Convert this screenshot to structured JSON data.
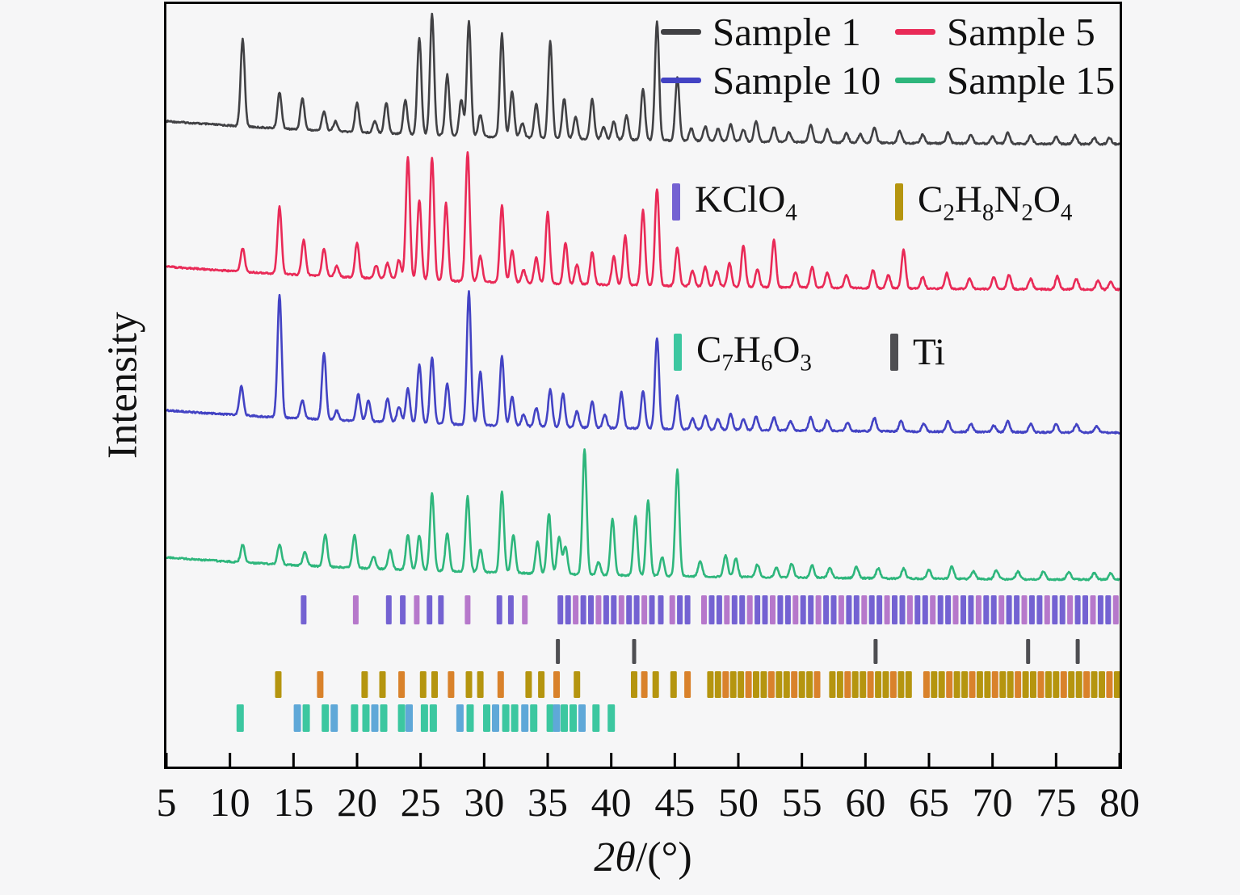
{
  "chart_data": {
    "type": "line",
    "title": "",
    "xlabel": "2θ/(°)",
    "xlabel_parts": [
      {
        "t": "2θ",
        "italic": true
      },
      {
        "t": "/(°)",
        "italic": false
      }
    ],
    "ylabel": "Intensity",
    "x_axis": {
      "min": 5,
      "max": 80,
      "tick_step": 5,
      "ticks": [
        5,
        10,
        15,
        20,
        25,
        30,
        35,
        40,
        45,
        50,
        55,
        60,
        65,
        70,
        75,
        80
      ]
    },
    "y_axis": {
      "ticks": [],
      "note": "arbitrary intensity units, no ticks shown"
    },
    "legend_position": "top-right",
    "grid": false,
    "series": [
      {
        "name": "Sample 1",
        "color": "#414144",
        "peaks": [
          [
            11.0,
            0.72
          ],
          [
            13.9,
            0.3
          ],
          [
            15.7,
            0.26
          ],
          [
            17.4,
            0.16
          ],
          [
            18.3,
            0.08
          ],
          [
            20.0,
            0.24
          ],
          [
            21.4,
            0.1
          ],
          [
            22.3,
            0.25
          ],
          [
            23.8,
            0.28
          ],
          [
            24.9,
            0.8
          ],
          [
            25.9,
            1.0
          ],
          [
            27.1,
            0.5
          ],
          [
            28.2,
            0.3
          ],
          [
            28.8,
            0.95
          ],
          [
            29.7,
            0.18
          ],
          [
            31.4,
            0.85
          ],
          [
            32.2,
            0.38
          ],
          [
            33.0,
            0.12
          ],
          [
            34.1,
            0.28
          ],
          [
            35.2,
            0.8
          ],
          [
            36.3,
            0.33
          ],
          [
            37.2,
            0.18
          ],
          [
            38.5,
            0.33
          ],
          [
            39.4,
            0.1
          ],
          [
            40.2,
            0.15
          ],
          [
            41.2,
            0.2
          ],
          [
            42.5,
            0.42
          ],
          [
            43.6,
            0.98
          ],
          [
            45.2,
            0.52
          ],
          [
            46.3,
            0.1
          ],
          [
            47.4,
            0.12
          ],
          [
            48.4,
            0.1
          ],
          [
            49.4,
            0.14
          ],
          [
            50.4,
            0.1
          ],
          [
            51.4,
            0.17
          ],
          [
            52.8,
            0.12
          ],
          [
            54.0,
            0.08
          ],
          [
            55.7,
            0.14
          ],
          [
            57.0,
            0.11
          ],
          [
            58.5,
            0.08
          ],
          [
            59.6,
            0.07
          ],
          [
            60.7,
            0.13
          ],
          [
            62.7,
            0.1
          ],
          [
            64.5,
            0.07
          ],
          [
            66.5,
            0.09
          ],
          [
            68.3,
            0.07
          ],
          [
            70.0,
            0.06
          ],
          [
            71.2,
            0.09
          ],
          [
            73.0,
            0.07
          ],
          [
            75.0,
            0.06
          ],
          [
            76.5,
            0.07
          ],
          [
            78.0,
            0.05
          ],
          [
            79.2,
            0.05
          ]
        ]
      },
      {
        "name": "Sample 5",
        "color": "#e92a57",
        "peaks": [
          [
            11.0,
            0.18
          ],
          [
            13.9,
            0.52
          ],
          [
            15.8,
            0.27
          ],
          [
            17.4,
            0.21
          ],
          [
            18.4,
            0.08
          ],
          [
            20.0,
            0.27
          ],
          [
            21.5,
            0.1
          ],
          [
            22.4,
            0.12
          ],
          [
            23.3,
            0.15
          ],
          [
            24.0,
            0.95
          ],
          [
            24.9,
            0.62
          ],
          [
            25.9,
            0.95
          ],
          [
            27.0,
            0.6
          ],
          [
            28.7,
            1.0
          ],
          [
            29.7,
            0.2
          ],
          [
            31.4,
            0.6
          ],
          [
            32.2,
            0.25
          ],
          [
            33.1,
            0.1
          ],
          [
            34.1,
            0.2
          ],
          [
            35.0,
            0.55
          ],
          [
            36.4,
            0.32
          ],
          [
            37.3,
            0.15
          ],
          [
            38.5,
            0.25
          ],
          [
            40.2,
            0.22
          ],
          [
            41.1,
            0.38
          ],
          [
            42.5,
            0.58
          ],
          [
            43.6,
            0.75
          ],
          [
            45.2,
            0.3
          ],
          [
            46.4,
            0.12
          ],
          [
            47.4,
            0.15
          ],
          [
            48.3,
            0.12
          ],
          [
            49.3,
            0.18
          ],
          [
            50.4,
            0.32
          ],
          [
            51.5,
            0.14
          ],
          [
            52.8,
            0.37
          ],
          [
            54.5,
            0.12
          ],
          [
            55.8,
            0.16
          ],
          [
            57.0,
            0.12
          ],
          [
            58.5,
            0.1
          ],
          [
            60.6,
            0.14
          ],
          [
            61.8,
            0.1
          ],
          [
            63.0,
            0.3
          ],
          [
            64.5,
            0.09
          ],
          [
            66.4,
            0.12
          ],
          [
            68.2,
            0.08
          ],
          [
            70.1,
            0.09
          ],
          [
            71.3,
            0.11
          ],
          [
            73.0,
            0.08
          ],
          [
            75.1,
            0.1
          ],
          [
            76.6,
            0.08
          ],
          [
            78.3,
            0.07
          ],
          [
            79.3,
            0.06
          ]
        ]
      },
      {
        "name": "Sample 10",
        "color": "#4343c4",
        "peaks": [
          [
            10.9,
            0.22
          ],
          [
            13.9,
            0.92
          ],
          [
            15.7,
            0.14
          ],
          [
            17.4,
            0.5
          ],
          [
            18.4,
            0.07
          ],
          [
            20.1,
            0.2
          ],
          [
            20.9,
            0.16
          ],
          [
            22.4,
            0.18
          ],
          [
            23.3,
            0.12
          ],
          [
            24.0,
            0.26
          ],
          [
            24.9,
            0.44
          ],
          [
            25.9,
            0.5
          ],
          [
            27.1,
            0.3
          ],
          [
            28.8,
            1.0
          ],
          [
            29.7,
            0.4
          ],
          [
            31.4,
            0.52
          ],
          [
            32.2,
            0.22
          ],
          [
            33.1,
            0.09
          ],
          [
            34.1,
            0.14
          ],
          [
            35.2,
            0.28
          ],
          [
            36.2,
            0.25
          ],
          [
            37.3,
            0.12
          ],
          [
            38.5,
            0.2
          ],
          [
            39.5,
            0.1
          ],
          [
            40.8,
            0.27
          ],
          [
            42.5,
            0.28
          ],
          [
            43.6,
            0.68
          ],
          [
            45.2,
            0.25
          ],
          [
            46.4,
            0.08
          ],
          [
            47.4,
            0.1
          ],
          [
            48.4,
            0.08
          ],
          [
            49.4,
            0.12
          ],
          [
            50.4,
            0.08
          ],
          [
            51.4,
            0.1
          ],
          [
            52.8,
            0.1
          ],
          [
            54.1,
            0.07
          ],
          [
            55.7,
            0.1
          ],
          [
            57.0,
            0.08
          ],
          [
            58.6,
            0.06
          ],
          [
            60.7,
            0.1
          ],
          [
            62.8,
            0.08
          ],
          [
            64.6,
            0.06
          ],
          [
            66.5,
            0.08
          ],
          [
            68.3,
            0.06
          ],
          [
            70.1,
            0.05
          ],
          [
            71.2,
            0.08
          ],
          [
            73.0,
            0.06
          ],
          [
            75.0,
            0.06
          ],
          [
            76.6,
            0.06
          ],
          [
            78.2,
            0.05
          ]
        ]
      },
      {
        "name": "Sample 15",
        "color": "#2eb67c",
        "peaks": [
          [
            11.0,
            0.14
          ],
          [
            13.9,
            0.16
          ],
          [
            15.9,
            0.11
          ],
          [
            17.5,
            0.26
          ],
          [
            19.8,
            0.26
          ],
          [
            21.3,
            0.1
          ],
          [
            22.6,
            0.15
          ],
          [
            24.0,
            0.28
          ],
          [
            24.9,
            0.28
          ],
          [
            25.9,
            0.62
          ],
          [
            27.1,
            0.3
          ],
          [
            28.7,
            0.6
          ],
          [
            29.7,
            0.18
          ],
          [
            31.4,
            0.65
          ],
          [
            32.3,
            0.3
          ],
          [
            34.2,
            0.25
          ],
          [
            35.1,
            0.48
          ],
          [
            35.9,
            0.3
          ],
          [
            36.4,
            0.22
          ],
          [
            37.9,
            1.0
          ],
          [
            39.0,
            0.1
          ],
          [
            40.1,
            0.45
          ],
          [
            41.9,
            0.48
          ],
          [
            42.9,
            0.6
          ],
          [
            44.0,
            0.15
          ],
          [
            45.2,
            0.85
          ],
          [
            47.0,
            0.12
          ],
          [
            49.0,
            0.17
          ],
          [
            49.8,
            0.15
          ],
          [
            51.5,
            0.1
          ],
          [
            53.0,
            0.08
          ],
          [
            54.2,
            0.11
          ],
          [
            55.8,
            0.1
          ],
          [
            57.2,
            0.08
          ],
          [
            59.3,
            0.09
          ],
          [
            61.0,
            0.08
          ],
          [
            63.0,
            0.08
          ],
          [
            65.0,
            0.07
          ],
          [
            66.8,
            0.1
          ],
          [
            68.5,
            0.06
          ],
          [
            70.3,
            0.07
          ],
          [
            72.0,
            0.06
          ],
          [
            74.0,
            0.06
          ],
          [
            76.0,
            0.06
          ],
          [
            78.0,
            0.05
          ],
          [
            79.3,
            0.05
          ]
        ]
      }
    ],
    "reference_patterns": [
      {
        "name": "KClO4",
        "formula": [
          [
            "KClO",
            false
          ],
          [
            "4",
            true
          ]
        ],
        "colors": [
          "#7462d2",
          "#b678cb"
        ],
        "positions": [
          15.8,
          19.9,
          22.5,
          23.6,
          24.7,
          25.7,
          26.6,
          28.7,
          31.2,
          32.1,
          33.2,
          36.0,
          36.6,
          37.2,
          37.8,
          38.4,
          39.0,
          39.6,
          40.2,
          40.8,
          41.4,
          42.0,
          42.6,
          43.2,
          43.9,
          44.8,
          45.4,
          46.0,
          47.3,
          47.9,
          48.5,
          49.1,
          49.7,
          50.3,
          50.9,
          51.5,
          52.1,
          52.7,
          53.3,
          53.9,
          54.5,
          55.1,
          55.7,
          56.3,
          56.9,
          57.5,
          58.1,
          58.7,
          59.3,
          59.9,
          60.5,
          61.1,
          61.7,
          62.3,
          62.9,
          63.5,
          64.1,
          64.7,
          65.3,
          65.9,
          66.5,
          67.1,
          67.7,
          68.3,
          68.9,
          69.5,
          70.1,
          70.7,
          71.3,
          71.9,
          72.5,
          73.1,
          73.7,
          74.3,
          74.9,
          75.5,
          76.1,
          76.7,
          77.3,
          77.9,
          78.5,
          79.1,
          79.7
        ]
      },
      {
        "name": "Ti",
        "formula": [
          [
            "Ti",
            false
          ]
        ],
        "colors": [
          "#4e4e52",
          "#4e4e52"
        ],
        "positions": [
          35.8,
          41.8,
          60.8,
          72.8,
          76.7
        ]
      },
      {
        "name": "C2H8N2O4",
        "formula": [
          [
            "C",
            false
          ],
          [
            "2",
            true
          ],
          [
            "H",
            false
          ],
          [
            "8",
            true
          ],
          [
            "N",
            false
          ],
          [
            "2",
            true
          ],
          [
            "O",
            false
          ],
          [
            "4",
            true
          ]
        ],
        "colors": [
          "#b5950f",
          "#d9822b"
        ],
        "positions": [
          13.8,
          17.1,
          20.6,
          22.0,
          23.5,
          25.2,
          26.1,
          27.4,
          28.8,
          29.7,
          31.3,
          33.5,
          34.5,
          35.7,
          37.3,
          41.8,
          42.6,
          43.5,
          44.9,
          46.0,
          47.8,
          48.4,
          49.0,
          49.6,
          50.2,
          50.8,
          51.4,
          52.0,
          52.6,
          53.2,
          53.8,
          54.4,
          55.0,
          55.6,
          56.2,
          57.4,
          58.0,
          58.6,
          59.2,
          59.8,
          60.4,
          61.0,
          61.6,
          62.2,
          62.8,
          63.4,
          64.8,
          65.4,
          66.0,
          66.6,
          67.2,
          67.8,
          68.4,
          69.0,
          69.6,
          70.2,
          70.8,
          71.4,
          72.0,
          72.6,
          73.2,
          73.8,
          74.4,
          75.0,
          75.6,
          76.2,
          76.8,
          77.4,
          78.0,
          78.6,
          79.2,
          79.8
        ]
      },
      {
        "name": "C7H6O3",
        "formula": [
          [
            "C",
            false
          ],
          [
            "7",
            true
          ],
          [
            "H",
            false
          ],
          [
            "6",
            true
          ],
          [
            "O",
            false
          ],
          [
            "3",
            true
          ]
        ],
        "colors": [
          "#3cc7a0",
          "#5fa8d8"
        ],
        "positions": [
          10.8,
          15.3,
          16.0,
          17.5,
          18.2,
          19.8,
          20.7,
          21.4,
          22.1,
          23.5,
          24.1,
          25.3,
          26.0,
          28.1,
          28.9,
          30.2,
          30.9,
          31.7,
          32.4,
          33.2,
          33.9,
          35.2,
          35.7,
          36.3,
          37.0,
          37.7,
          38.8,
          40.0
        ]
      }
    ]
  }
}
